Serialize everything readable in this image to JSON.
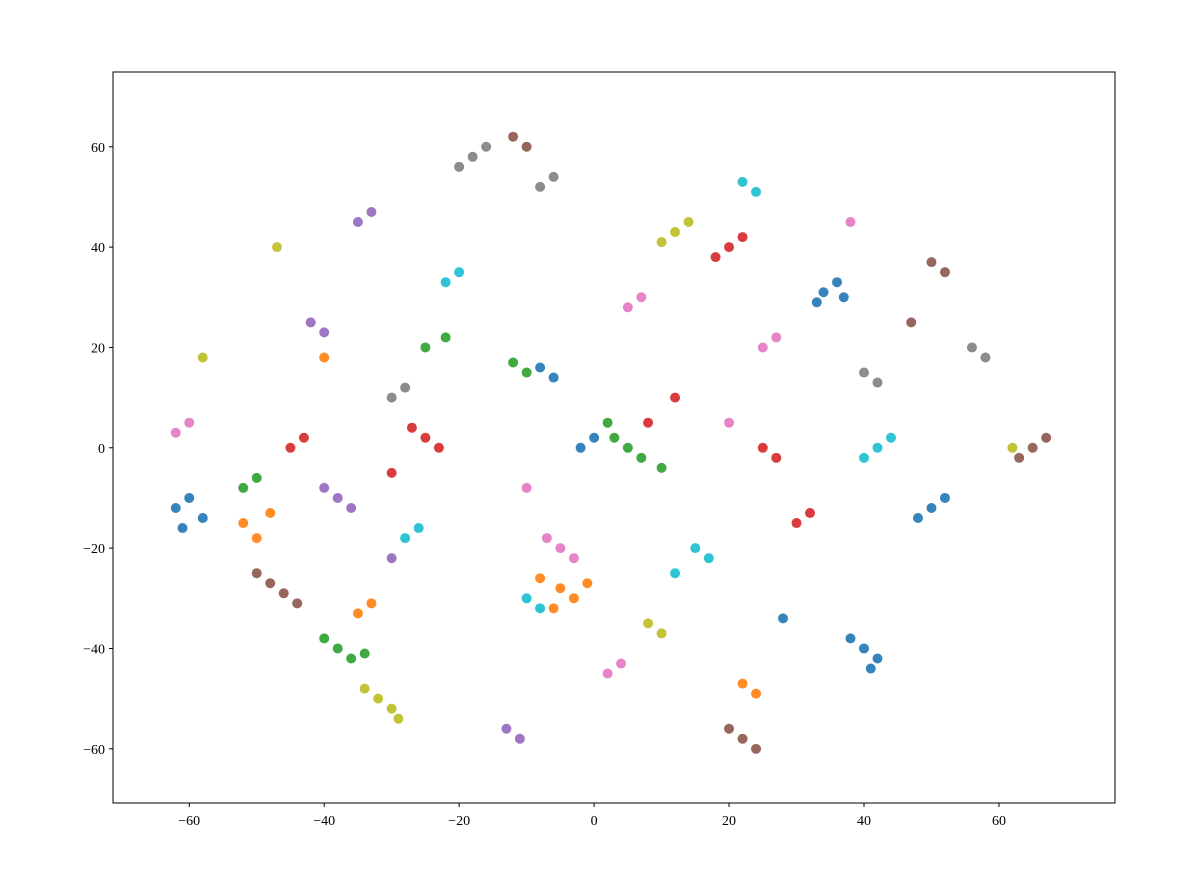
{
  "chart_data": {
    "type": "scatter",
    "xlim": [
      -71.3,
      77.2
    ],
    "ylim": [
      -70.8,
      74.9
    ],
    "xticks": [
      {
        "value": -60,
        "label": "−60"
      },
      {
        "value": -40,
        "label": "−40"
      },
      {
        "value": -20,
        "label": "−20"
      },
      0,
      20,
      40,
      60
    ],
    "yticks": [
      {
        "value": -60,
        "label": "−60"
      },
      {
        "value": -40,
        "label": "−40"
      },
      {
        "value": -20,
        "label": "−20"
      },
      0,
      20,
      40,
      60
    ],
    "grid": false,
    "series": [
      {
        "color": "#1f77b4",
        "x": [
          -62,
          -60,
          -58,
          -61,
          34,
          36,
          33,
          37,
          40,
          42,
          38,
          41,
          50,
          52,
          48,
          -8,
          -6,
          -2,
          0,
          28
        ],
        "y": [
          -12,
          -10,
          -14,
          -16,
          31,
          33,
          29,
          30,
          -40,
          -42,
          -38,
          -44,
          -12,
          -10,
          -14,
          16,
          14,
          0,
          2,
          -34
        ]
      },
      {
        "color": "#ff7f0e",
        "x": [
          -52,
          -50,
          -48,
          -5,
          -3,
          -8,
          -35,
          -33,
          22,
          24,
          -40,
          -6,
          -1
        ],
        "y": [
          -15,
          -18,
          -13,
          -28,
          -30,
          -26,
          -33,
          -31,
          -47,
          -49,
          18,
          -32,
          -27
        ]
      },
      {
        "color": "#2ca02c",
        "x": [
          -38,
          -36,
          -40,
          -34,
          -52,
          -50,
          5,
          7,
          3,
          -10,
          -12,
          -25,
          -22,
          10,
          2
        ],
        "y": [
          -40,
          -42,
          -38,
          -41,
          -8,
          -6,
          0,
          -2,
          2,
          15,
          17,
          20,
          22,
          -4,
          5
        ]
      },
      {
        "color": "#d62728",
        "x": [
          -45,
          -43,
          -25,
          -27,
          -23,
          20,
          22,
          18,
          25,
          27,
          30,
          32,
          -30,
          8,
          12
        ],
        "y": [
          0,
          2,
          2,
          4,
          0,
          40,
          42,
          38,
          0,
          -2,
          -15,
          -13,
          -5,
          5,
          10
        ]
      },
      {
        "color": "#9467bd",
        "x": [
          -38,
          -36,
          -40,
          -42,
          -40,
          -13,
          -11,
          -35,
          -33,
          -30
        ],
        "y": [
          -10,
          -12,
          -8,
          25,
          23,
          -56,
          -58,
          45,
          47,
          -22
        ]
      },
      {
        "color": "#8c564b",
        "x": [
          -48,
          -46,
          -50,
          -44,
          22,
          24,
          20,
          65,
          67,
          63,
          -12,
          -10,
          50,
          52,
          47
        ],
        "y": [
          -27,
          -29,
          -25,
          -31,
          -58,
          -60,
          -56,
          0,
          2,
          -2,
          62,
          60,
          37,
          35,
          25
        ]
      },
      {
        "color": "#e377c2",
        "x": [
          -62,
          -60,
          -5,
          -3,
          -7,
          5,
          7,
          25,
          27,
          38,
          2,
          4,
          20,
          -10
        ],
        "y": [
          3,
          5,
          -20,
          -22,
          -18,
          28,
          30,
          20,
          22,
          45,
          -45,
          -43,
          5,
          -8
        ]
      },
      {
        "color": "#7f7f7f",
        "x": [
          -18,
          -16,
          -20,
          -8,
          -6,
          58,
          56,
          40,
          42,
          -30,
          -28
        ],
        "y": [
          58,
          60,
          56,
          52,
          54,
          18,
          20,
          15,
          13,
          10,
          12
        ]
      },
      {
        "color": "#bcbd22",
        "x": [
          -32,
          -30,
          -34,
          12,
          14,
          10,
          -47,
          -58,
          8,
          10,
          62,
          -29
        ],
        "y": [
          -50,
          -52,
          -48,
          43,
          45,
          41,
          40,
          18,
          -35,
          -37,
          0,
          -54
        ]
      },
      {
        "color": "#17becf",
        "x": [
          -22,
          -20,
          -28,
          -26,
          22,
          24,
          42,
          44,
          40,
          15,
          17,
          -10,
          -8,
          12
        ],
        "y": [
          33,
          35,
          -18,
          -16,
          53,
          51,
          0,
          2,
          -2,
          -20,
          -22,
          -30,
          -32,
          -25
        ]
      }
    ]
  }
}
